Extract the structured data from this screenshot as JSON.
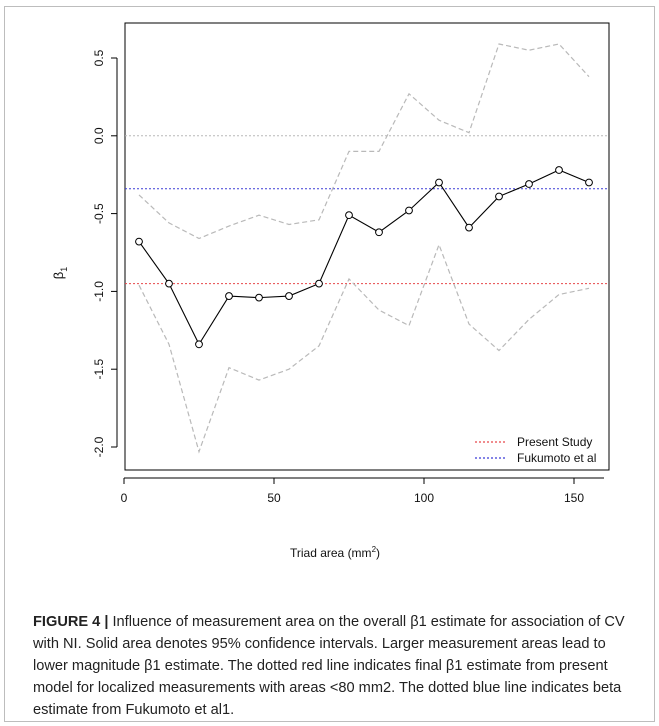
{
  "chart_data": {
    "type": "line",
    "xlabel_main": "Triad area (mm",
    "xlabel_sup": "2",
    "xlabel_end": ")",
    "ylabel_main": "β",
    "ylabel_sub": "1",
    "xlim": [
      0,
      160
    ],
    "ylim": [
      -2.1,
      0.7
    ],
    "x_ticks": [
      0,
      50,
      100,
      150
    ],
    "y_ticks": [
      -2.0,
      -1.5,
      -1.0,
      -0.5,
      0.0,
      0.5
    ],
    "y_tick_labels": [
      "-2.0",
      "-1.5",
      "-1.0",
      "-0.5",
      "0.0",
      "0.5"
    ],
    "grid": false,
    "legend_position": "bottom-right",
    "x": [
      5,
      15,
      25,
      35,
      45,
      55,
      65,
      75,
      85,
      95,
      105,
      115,
      125,
      135,
      145,
      155
    ],
    "estimate": [
      -0.68,
      -0.95,
      -1.34,
      -1.03,
      -1.04,
      -1.03,
      -0.95,
      -0.51,
      -0.62,
      -0.48,
      -0.3,
      -0.59,
      -0.39,
      -0.31,
      -0.22,
      -0.3
    ],
    "ci_upper": [
      -0.38,
      -0.56,
      -0.66,
      -0.58,
      -0.51,
      -0.57,
      -0.54,
      -0.1,
      -0.1,
      0.27,
      0.1,
      0.02,
      0.59,
      0.55,
      0.59,
      0.38
    ],
    "ci_lower": [
      -0.96,
      -1.34,
      -2.03,
      -1.49,
      -1.57,
      -1.5,
      -1.35,
      -0.92,
      -1.12,
      -1.22,
      -0.7,
      -1.21,
      -1.38,
      -1.18,
      -1.02,
      -0.98
    ],
    "reference_lines": [
      {
        "name": "Present Study",
        "y": -0.95,
        "color": "#e8474a"
      },
      {
        "name": "Fukumoto et al",
        "y": -0.34,
        "color": "#3b3bd6"
      },
      {
        "name": "",
        "y": 0.0,
        "color": "#b8b8b8"
      }
    ],
    "series_color": "#000000",
    "ci_color": "#b9b9b9"
  },
  "caption": {
    "figure_label": "FIGURE 4 | ",
    "text": "Influence of measurement area on the overall β1 estimate for association of CV with NI. Solid area denotes 95% confidence intervals. Larger measurement areas lead to lower magnitude β1 estimate. The dotted red line indicates final β1 estimate from present model for localized measurements with areas <80 mm2. The dotted blue line indicates beta estimate from Fukumoto et al1."
  }
}
